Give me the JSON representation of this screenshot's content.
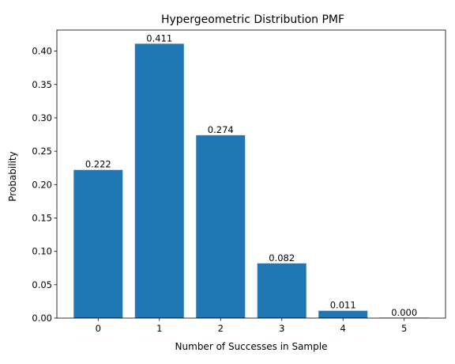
{
  "chart_data": {
    "type": "bar",
    "title": "Hypergeometric Distribution PMF",
    "xlabel": "Number of Successes in Sample",
    "ylabel": "Probability",
    "categories": [
      "0",
      "1",
      "2",
      "3",
      "4",
      "5"
    ],
    "values": [
      0.222,
      0.411,
      0.274,
      0.082,
      0.011,
      0.0
    ],
    "data_labels": [
      "0.222",
      "0.411",
      "0.274",
      "0.082",
      "0.011",
      "0.000"
    ],
    "ylim": [
      0,
      0.4315
    ],
    "yticks": [
      0.0,
      0.05,
      0.1,
      0.15,
      0.2,
      0.25,
      0.3,
      0.35,
      0.4
    ],
    "ytick_labels": [
      "0.00",
      "0.05",
      "0.10",
      "0.15",
      "0.20",
      "0.25",
      "0.30",
      "0.35",
      "0.40"
    ],
    "grid": false,
    "legend": "none",
    "bar_color": "#1f77b4"
  }
}
